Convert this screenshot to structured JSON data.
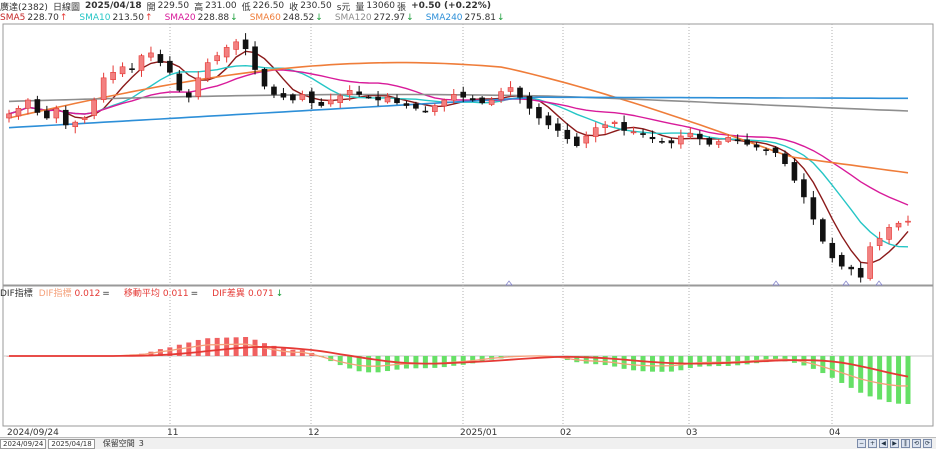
{
  "header": {
    "stock": "廣達(2382)",
    "period": "日線圖",
    "date": "2025/04/18",
    "open_label": "開",
    "open": "229.50",
    "high_label": "高",
    "high": "231.00",
    "low_label": "低",
    "low": "226.50",
    "close_label": "收",
    "close": "230.50",
    "unit": "s元",
    "vol_label": "量",
    "volume": "13060",
    "vol_unit": "張",
    "change": "+0.50 (+0.22%)"
  },
  "sma_legend": [
    {
      "label": "SMA5",
      "value": "228.70",
      "arrow": "↑",
      "color": "#c62828"
    },
    {
      "label": "SMA10",
      "value": "213.50",
      "arrow": "↑",
      "color": "#26c6c6"
    },
    {
      "label": "SMA20",
      "value": "228.88",
      "arrow": "↓",
      "color": "#d81b9a"
    },
    {
      "label": "SMA60",
      "value": "248.52",
      "arrow": "↓",
      "color": "#ef7d3a"
    },
    {
      "label": "SMA120",
      "value": "272.97",
      "arrow": "↓",
      "color": "#8e8e8e"
    },
    {
      "label": "SMA240",
      "value": "275.81",
      "arrow": "↓",
      "color": "#2d8fd8"
    }
  ],
  "indicator_legend": {
    "name": "DIF指標",
    "items": [
      {
        "label": "DIF指標",
        "value": "0.012",
        "arrow": "=",
        "color": "#f4a07a"
      },
      {
        "label": "移動平均",
        "value": "0.011",
        "arrow": "=",
        "color": "#e53935"
      },
      {
        "label": "DIF差異",
        "value": "0.071",
        "arrow": "↓",
        "color": "#e53935"
      }
    ]
  },
  "x_axis": {
    "labels": [
      "2024/09/24",
      "11",
      "12",
      "2025/01",
      "02",
      "03",
      "04"
    ]
  },
  "footer": {
    "from": "2024/09/24",
    "to": "2025/04/18",
    "label": "保留空間",
    "value": "3",
    "buttons": [
      "−",
      "+",
      "◀",
      "▶",
      "‖",
      "⟲",
      "⟳"
    ]
  },
  "colors": {
    "up": "#e53935",
    "down": "#111111",
    "hist_up": "#f06060",
    "hist_down": "#66e066",
    "bg": "#ffffff",
    "grid": "#b0b0b0"
  },
  "chart_data": {
    "type": "candlestick",
    "symbol": "廣達(2382)",
    "interval": "daily",
    "date_range": [
      "2024/09/24",
      "2025/04/18"
    ],
    "ohlc_last": {
      "open": 229.5,
      "high": 231.0,
      "low": 226.5,
      "close": 230.5,
      "volume": 13060
    },
    "closes": [
      308,
      312,
      318,
      309,
      305,
      312,
      300,
      302,
      305,
      318,
      334,
      338,
      342,
      340,
      350,
      352,
      345,
      338,
      325,
      320,
      334,
      345,
      350,
      356,
      360,
      355,
      340,
      328,
      322,
      320,
      318,
      322,
      316,
      314,
      318,
      321,
      325,
      322,
      320,
      318,
      320,
      316,
      314,
      312,
      310,
      314,
      318,
      322,
      320,
      318,
      316,
      318,
      324,
      327,
      320,
      312,
      305,
      300,
      296,
      290,
      285,
      292,
      298,
      300,
      302,
      296,
      295,
      293,
      290,
      288,
      287,
      292,
      294,
      290,
      286,
      288,
      291,
      289,
      286,
      284,
      282,
      280,
      272,
      260,
      248,
      232,
      216,
      204,
      198,
      196,
      190,
      212,
      218,
      226,
      229,
      230.5
    ],
    "sma": [
      {
        "name": "SMA5",
        "last": 228.7
      },
      {
        "name": "SMA10",
        "last": 213.5
      },
      {
        "name": "SMA20",
        "last": 228.88
      },
      {
        "name": "SMA60",
        "last": 248.52
      },
      {
        "name": "SMA120",
        "last": 272.97
      },
      {
        "name": "SMA240",
        "last": 275.81
      }
    ],
    "indicator": {
      "name": "DIF指標",
      "dif": 0.012,
      "signal": 0.011,
      "diff": 0.071
    }
  }
}
